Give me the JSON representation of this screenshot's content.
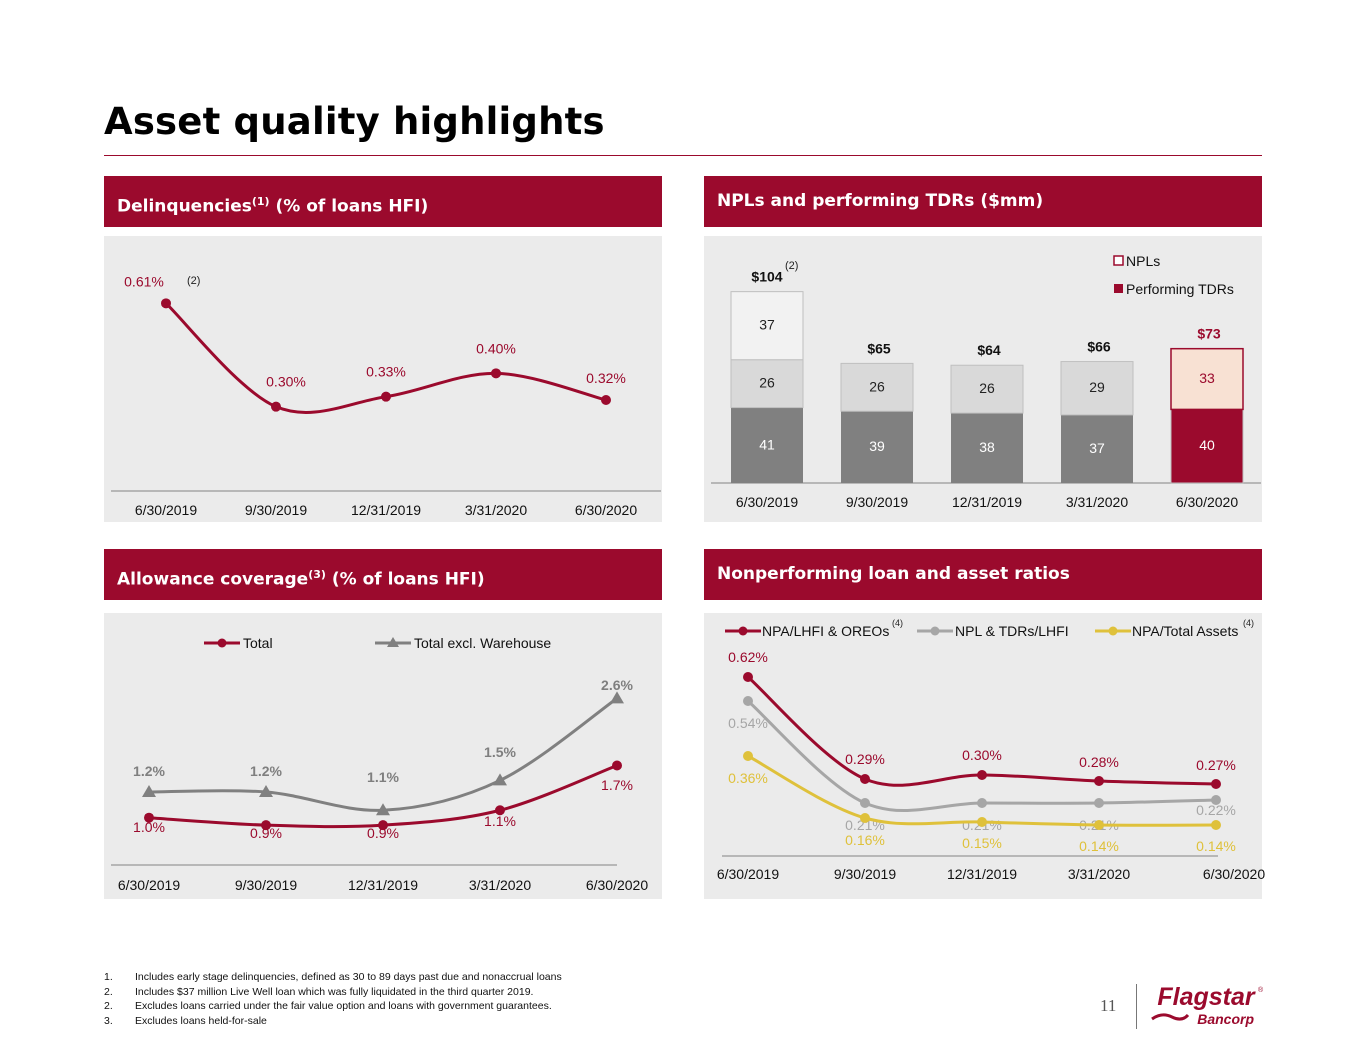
{
  "title": "Asset quality highlights",
  "panels": {
    "delinq": {
      "head": "Delinquencies",
      "sup": "(1)",
      "rest": " (% of loans HFI)"
    },
    "npl": {
      "head": "NPLs and performing TDRs ($mm)"
    },
    "allow": {
      "head": "Allowance coverage",
      "sup": "(3)",
      "rest": " (% of loans HFI)"
    },
    "ratio": {
      "head": "Nonperforming loan and asset ratios"
    }
  },
  "chart_data": [
    {
      "id": "delinquencies",
      "type": "line",
      "categories": [
        "6/30/2019",
        "9/30/2019",
        "12/31/2019",
        "3/31/2020",
        "6/30/2020"
      ],
      "values": [
        0.61,
        0.3,
        0.33,
        0.4,
        0.32
      ],
      "labels": [
        "0.61%",
        "0.30%",
        "0.33%",
        "0.40%",
        "0.32%"
      ],
      "first_label_note": "(2)",
      "color": "#9b0a2d",
      "ylim": [
        0.2,
        0.65
      ]
    },
    {
      "id": "npls_tdrs",
      "type": "bar",
      "categories": [
        "6/30/2019",
        "9/30/2019",
        "12/31/2019",
        "3/31/2020",
        "6/30/2020"
      ],
      "stacks": [
        [
          {
            "value": 41,
            "label": "41"
          },
          {
            "value": 26,
            "label": "26"
          },
          {
            "value": 37,
            "label": "37"
          }
        ],
        [
          {
            "value": 39,
            "label": "39"
          },
          {
            "value": 26,
            "label": "26"
          }
        ],
        [
          {
            "value": 38,
            "label": "38"
          },
          {
            "value": 26,
            "label": "26"
          }
        ],
        [
          {
            "value": 37,
            "label": "37"
          },
          {
            "value": 29,
            "label": "29"
          }
        ],
        [
          {
            "value": 40,
            "label": "40"
          },
          {
            "value": 33,
            "label": "33"
          }
        ]
      ],
      "totals": [
        "$104",
        "$65",
        "$64",
        "$66",
        "$73"
      ],
      "first_total_note": "(2)",
      "legend": [
        "NPLs",
        "Performing TDRs"
      ],
      "colors": {
        "npl_grey": "#808080",
        "tdr_grey": "#d9d9d9",
        "extra_grey": "#f2f2f2",
        "npl_red": "#9b0a2d",
        "tdr_peach": "#f8e1d3",
        "outline": "#bfbfbf",
        "total_red": "#9b0a2d"
      },
      "ylim": [
        0,
        110
      ]
    },
    {
      "id": "allowance",
      "type": "line",
      "categories": [
        "6/30/2019",
        "9/30/2019",
        "12/31/2019",
        "3/31/2020",
        "6/30/2020"
      ],
      "series": [
        {
          "name": "Total",
          "values": [
            1.0,
            0.9,
            0.9,
            1.1,
            1.7
          ],
          "labels": [
            "1.0%",
            "0.9%",
            "0.9%",
            "1.1%",
            "1.7%"
          ],
          "color": "#9b0a2d",
          "marker": "circle"
        },
        {
          "name": "Total excl. Warehouse",
          "values": [
            1.2,
            1.2,
            1.1,
            1.5,
            2.6
          ],
          "labels": [
            "1.2%",
            "1.2%",
            "1.1%",
            "1.5%",
            "2.6%"
          ],
          "color": "#808080",
          "marker": "triangle"
        }
      ],
      "ylim": [
        0.5,
        2.9
      ]
    },
    {
      "id": "npa_ratios",
      "type": "line",
      "categories": [
        "6/30/2019",
        "9/30/2019",
        "12/31/2019",
        "3/31/2020",
        "6/30/2020"
      ],
      "series": [
        {
          "name": "NPA/LHFI & OREOs",
          "note": "(4)",
          "values": [
            0.62,
            0.29,
            0.3,
            0.28,
            0.27
          ],
          "labels": [
            "0.62%",
            "0.29%",
            "0.30%",
            "0.28%",
            "0.27%"
          ],
          "color": "#9b0a2d"
        },
        {
          "name": "NPL & TDRs/LHFI",
          "note": "",
          "values": [
            0.54,
            0.21,
            0.21,
            0.21,
            0.22
          ],
          "labels": [
            "0.54%",
            "0.21%",
            "0.21%",
            "0.21%",
            "0.22%"
          ],
          "color": "#a6a6a6"
        },
        {
          "name": "NPA/Total Assets",
          "note": "(4)",
          "values": [
            0.36,
            0.16,
            0.15,
            0.14,
            0.14
          ],
          "labels": [
            "0.36%",
            "0.16%",
            "0.15%",
            "0.14%",
            "0.14%"
          ],
          "color": "#dfc13b"
        }
      ],
      "ylim": [
        0.08,
        0.68
      ]
    }
  ],
  "footnotes": [
    {
      "num": "1.",
      "text": "Includes early stage delinquencies, defined as 30 to 89 days past due and nonaccrual loans"
    },
    {
      "num": "2.",
      "text": "Includes $37 million Live Well loan which was fully liquidated in the third quarter 2019."
    },
    {
      "num": "2.",
      "text": "Excludes loans carried under the fair value option and loans with government guarantees."
    },
    {
      "num": "3.",
      "text": "Excludes loans held-for-sale"
    }
  ],
  "page_number": "11",
  "logo": {
    "name": "Flagstar",
    "reg": "®",
    "sub": "Bancorp",
    "color": "#9b0a2d"
  }
}
